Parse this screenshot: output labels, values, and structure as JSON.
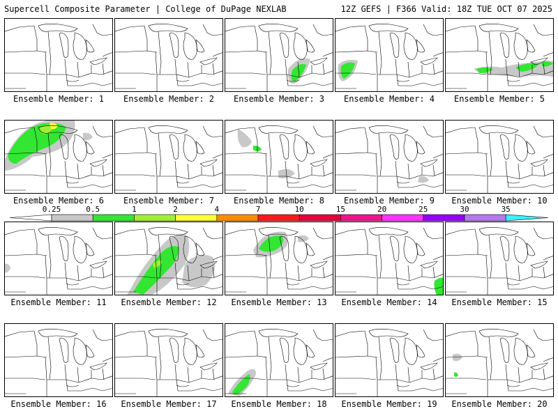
{
  "header": {
    "left": "Supercell Composite Parameter | College of DuPage NEXLAB",
    "right": "12Z GEFS | F366 Valid: 18Z TUE OCT 07 2025"
  },
  "panels": [
    {
      "label": "Ensemble Member: 1"
    },
    {
      "label": "Ensemble Member: 2"
    },
    {
      "label": "Ensemble Member: 3"
    },
    {
      "label": "Ensemble Member: 4"
    },
    {
      "label": "Ensemble Member: 5"
    },
    {
      "label": "Ensemble Member: 6"
    },
    {
      "label": "Ensemble Member: 7"
    },
    {
      "label": "Ensemble Member: 8"
    },
    {
      "label": "Ensemble Member: 9"
    },
    {
      "label": "Ensemble Member: 10"
    },
    {
      "label": "Ensemble Member: 11"
    },
    {
      "label": "Ensemble Member: 12"
    },
    {
      "label": "Ensemble Member: 13"
    },
    {
      "label": "Ensemble Member: 14"
    },
    {
      "label": "Ensemble Member: 15"
    },
    {
      "label": "Ensemble Member: 16"
    },
    {
      "label": "Ensemble Member: 17"
    },
    {
      "label": "Ensemble Member: 18"
    },
    {
      "label": "Ensemble Member: 19"
    },
    {
      "label": "Ensemble Member: 20"
    }
  ],
  "colorbar": {
    "ticks": [
      "0.25",
      "0.5",
      "1",
      "2",
      "4",
      "7",
      "10",
      "15",
      "20",
      "25",
      "30",
      "35"
    ],
    "colors": [
      "#c8c8c8",
      "#32e632",
      "#a0f032",
      "#ffff32",
      "#ff8c00",
      "#ff1a1a",
      "#e6003c",
      "#f0148c",
      "#ff32ff",
      "#9600ff",
      "#b478f0",
      "#3cf0ff"
    ]
  }
}
